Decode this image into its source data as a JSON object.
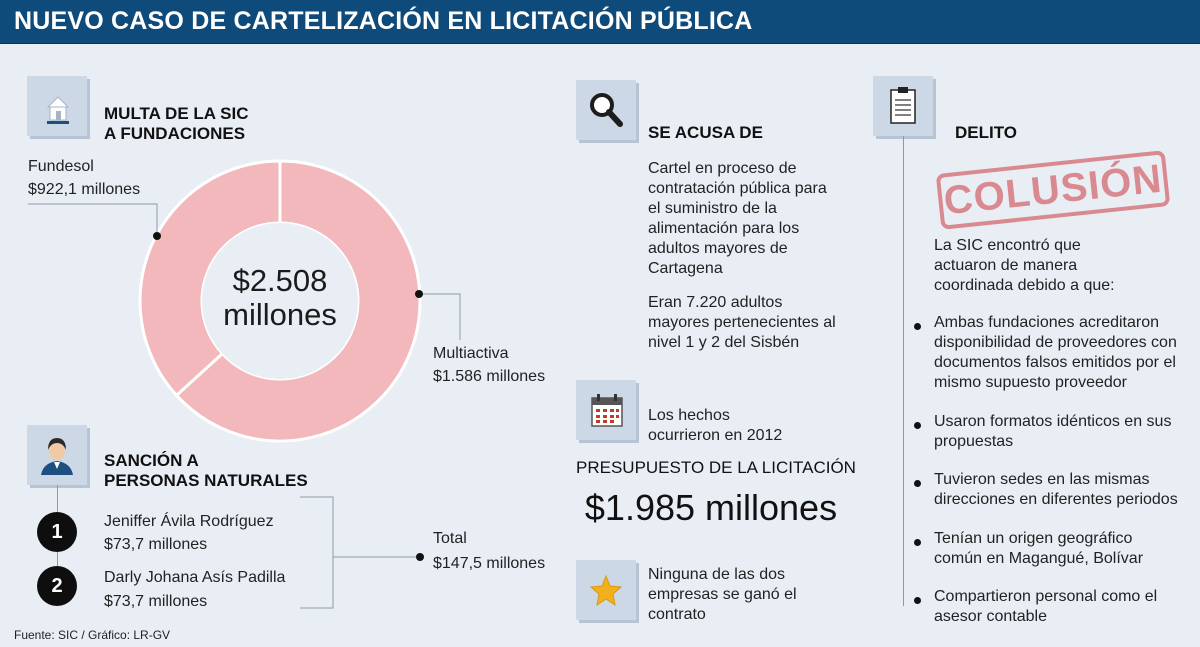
{
  "header": {
    "title": "NUEVO CASO DE CARTELIZACIÓN EN LICITACIÓN PÚBLICA"
  },
  "multa": {
    "title_line1": "MULTA DE LA SIC",
    "title_line2": "A FUNDACIONES",
    "icon": "house-icon",
    "center_value": "$2.508",
    "center_unit": "millones",
    "fundesol_name": "Fundesol",
    "fundesol_value": "$922,1 millones",
    "multiactiva_name": "Multiactiva",
    "multiactiva_value": "$1.586 millones"
  },
  "chart_data": {
    "type": "pie",
    "labels": [
      "Fundesol",
      "Multiactiva"
    ],
    "values": [
      922.1,
      1586
    ],
    "unit": "millones"
  },
  "sancion": {
    "title_line1": "SANCIÓN A",
    "title_line2": "PERSONAS NATURALES",
    "icon": "person-icon",
    "people": [
      {
        "number": "1",
        "name": "Jeniffer Ávila Rodríguez",
        "amount": "$73,7 millones"
      },
      {
        "number": "2",
        "name": "Darly Johana Asís Padilla",
        "amount": "$73,7 millones"
      }
    ],
    "total_label": "Total",
    "total_value": "$147,5 millones"
  },
  "acusa": {
    "title": "SE ACUSA DE",
    "icon": "magnifier-icon",
    "lines": [
      "Cartel en proceso de",
      "contratación pública para",
      "el suministro de la",
      "alimentación para los",
      "adultos mayores de",
      "Cartagena"
    ],
    "extra": [
      "Eran 7.220 adultos",
      "mayores pertenecientes al",
      "nivel 1 y 2 del Sisbén"
    ]
  },
  "hechos": {
    "icon": "calendar-icon",
    "line1": "Los hechos",
    "line2": "ocurrieron en 2012"
  },
  "presupuesto": {
    "title": "PRESUPUESTO DE LA LICITACIÓN",
    "value": "$1.985 millones"
  },
  "ninguna": {
    "icon": "star-icon",
    "lines": [
      "Ninguna de las dos",
      "empresas se ganó el",
      "contrato"
    ]
  },
  "delito": {
    "title": "DELITO",
    "icon": "clipboard-icon",
    "stamp": "COLUSIÓN",
    "intro": [
      "La SIC encontró que",
      "actuaron de manera",
      "coordinada debido a que:"
    ],
    "reasons": [
      [
        "Ambas fundaciones acreditaron",
        "disponibilidad de proveedores con",
        "documentos falsos emitidos por el",
        "mismo supuesto proveedor"
      ],
      [
        "Usaron formatos idénticos en sus",
        "propuestas"
      ],
      [
        "Tuvieron sedes en las mismas",
        "direcciones en diferentes periodos"
      ],
      [
        "Tenían un origen geográfico",
        "común en Magangué, Bolívar"
      ],
      [
        "Compartieron personal como el",
        "asesor contable"
      ]
    ],
    "colors": {
      "stamp": "#d98a90"
    }
  },
  "footer": {
    "source": "Fuente: SIC / Gráfico: LR-GV"
  }
}
